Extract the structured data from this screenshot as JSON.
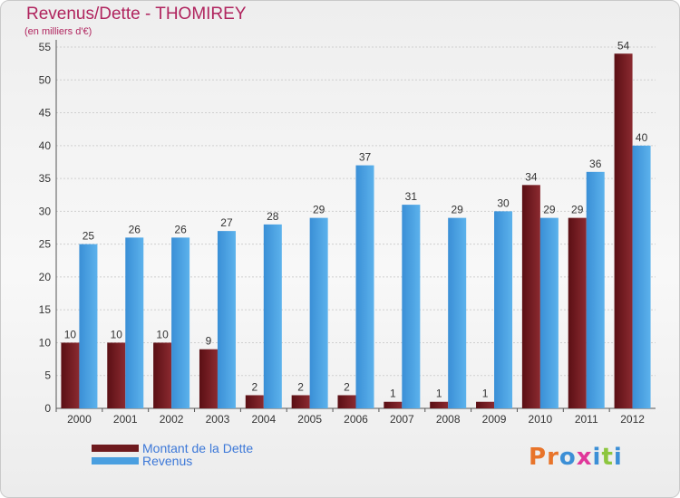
{
  "header": {
    "title": "Revenus/Dette - THOMIREY",
    "subtitle": "(en milliers d'€)"
  },
  "legend": {
    "debt_label": "Montant de la Dette",
    "revenue_label": "Revenus"
  },
  "logo": {
    "letters": [
      "P",
      "r",
      "o",
      "x",
      "i",
      "t",
      "i"
    ]
  },
  "colors": {
    "debt": "#6e1a1e",
    "revenue": "#4a9fe0",
    "title": "#b0245e",
    "legend_text": "#3c78d8",
    "logo": [
      "#e8742a",
      "#e8742a",
      "#3c8fd6",
      "#e0379a",
      "#3c8fd6",
      "#8dc63f",
      "#3c8fd6"
    ]
  },
  "chart_data": {
    "type": "bar",
    "title": "Revenus/Dette - THOMIREY",
    "subtitle": "(en milliers d'€)",
    "categories": [
      "2000",
      "2001",
      "2002",
      "2003",
      "2004",
      "2005",
      "2006",
      "2007",
      "2008",
      "2009",
      "2010",
      "2011",
      "2012"
    ],
    "series": [
      {
        "name": "Montant de la Dette",
        "values": [
          10,
          10,
          10,
          9,
          2,
          2,
          2,
          1,
          1,
          1,
          34,
          29,
          54
        ]
      },
      {
        "name": "Revenus",
        "values": [
          25,
          26,
          26,
          27,
          28,
          29,
          37,
          31,
          29,
          30,
          29,
          36,
          40
        ]
      }
    ],
    "yticks": [
      0,
      5,
      10,
      15,
      20,
      25,
      30,
      35,
      40,
      45,
      50,
      55
    ],
    "ylim": [
      0,
      55
    ],
    "xlabel": "",
    "ylabel": "",
    "grid": true,
    "legend_position": "bottom-left"
  }
}
